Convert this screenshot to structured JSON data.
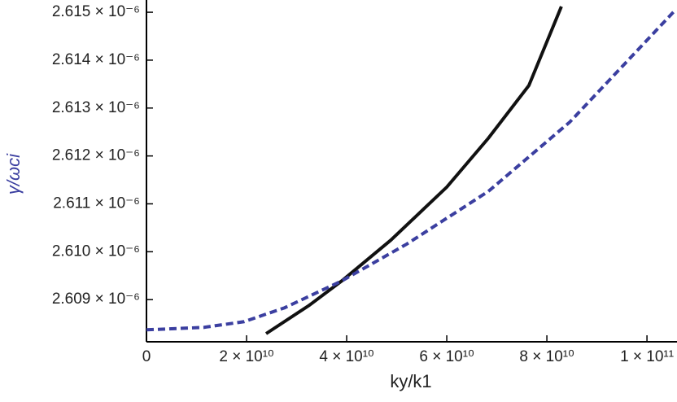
{
  "chart_data": {
    "type": "line",
    "x_label": "ky/k1",
    "y_label": "γ/ωci",
    "xlim": [
      0,
      106000000000
    ],
    "ylim": [
      2.60812e-06,
      2.61512e-06
    ],
    "xticks": [
      0,
      {
        "value": 20000000000,
        "label": "2 × 10¹⁰"
      },
      {
        "value": 40000000000,
        "label": "4 × 10¹⁰"
      },
      {
        "value": 60000000000,
        "label": "6 × 10¹⁰"
      },
      {
        "value": 80000000000,
        "label": "8 × 10¹⁰"
      },
      {
        "value": 100000000000,
        "label": "1 × 10¹¹"
      }
    ],
    "yticks": [
      {
        "value": 2.609e-06,
        "label": "2.609 × 10⁻⁶"
      },
      {
        "value": 2.61e-06,
        "label": "2.610 × 10⁻⁶"
      },
      {
        "value": 2.611e-06,
        "label": "2.611 × 10⁻⁶"
      },
      {
        "value": 2.612e-06,
        "label": "2.612 × 10⁻⁶"
      },
      {
        "value": 2.613e-06,
        "label": "2.613 × 10⁻⁶"
      },
      {
        "value": 2.614e-06,
        "label": "2.614 × 10⁻⁶"
      },
      {
        "value": 2.615e-06,
        "label": "2.615 × 10⁻⁶"
      }
    ],
    "grid": false,
    "series": [
      {
        "color": "#111111",
        "line_style": "solid",
        "x": [
          23900000000,
          32500000000,
          39000000000,
          48800000000,
          60000000000,
          68300000000,
          76400000000,
          82900000000
        ],
        "values": [
          2.60829e-06,
          2.60888e-06,
          2.60939e-06,
          2.61024e-06,
          2.61135e-06,
          2.61237e-06,
          2.61347e-06,
          2.61512e-06
        ]
      },
      {
        "color": "#3b3fa0",
        "line_style": "dashed",
        "x": [
          0,
          11400000000,
          19500000000,
          27600000000,
          39000000000,
          52000000000,
          68300000000,
          84600000000,
          97600000000,
          105700000000
        ],
        "values": [
          2.60837e-06,
          2.60842e-06,
          2.60854e-06,
          2.60883e-06,
          2.60939e-06,
          2.61016e-06,
          2.61126e-06,
          2.61271e-06,
          2.61415e-06,
          2.61505e-06
        ]
      }
    ]
  }
}
